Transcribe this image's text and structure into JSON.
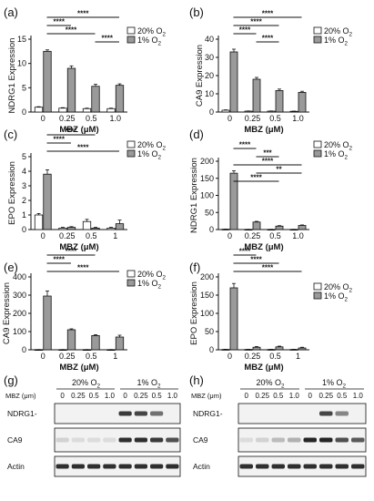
{
  "legend": {
    "normoxia": "20% O",
    "hypoxia": "1% O",
    "sub": "2"
  },
  "colors": {
    "normoxia": "#ffffff",
    "hypoxia": "#9a9a9a",
    "axis": "#111111",
    "band": "#1a1a1a",
    "blot_bg": "#f2f2f2"
  },
  "blot_panels": [
    {
      "label": "(g)",
      "mbz_label": "MBZ (μm)",
      "group_20": "20% O",
      "group_1": "1% O",
      "sub": "2",
      "doses": [
        "0",
        "0.25",
        "0.5",
        "1.0",
        "0",
        "0.25",
        "0.5",
        "1.0"
      ],
      "rows": [
        {
          "name": "NDRG1-",
          "intensities": [
            0,
            0,
            0,
            0,
            0.85,
            0.8,
            0.6,
            0
          ]
        },
        {
          "name": "CA9",
          "intensities": [
            0.15,
            0.1,
            0.1,
            0.1,
            0.9,
            0.9,
            0.85,
            0.75
          ]
        },
        {
          "name": "Actin",
          "intensities": [
            0.9,
            0.9,
            0.9,
            0.9,
            0.9,
            0.9,
            0.9,
            0.9
          ]
        }
      ]
    },
    {
      "label": "(h)",
      "mbz_label": "MBZ (μm)",
      "group_20": "20% O",
      "group_1": "1% O",
      "sub": "2",
      "doses": [
        "0",
        "0.25",
        "0.5",
        "1.0",
        "0",
        "0.25",
        "0.5",
        "1.0"
      ],
      "rows": [
        {
          "name": "NDRG1-",
          "intensities": [
            0,
            0,
            0,
            0,
            0,
            0.8,
            0.5,
            0
          ]
        },
        {
          "name": "CA9",
          "intensities": [
            0.1,
            0.15,
            0.25,
            0.3,
            0.95,
            0.95,
            0.75,
            0.7
          ]
        },
        {
          "name": "Actin",
          "intensities": [
            0.9,
            0.9,
            0.9,
            0.9,
            0.9,
            0.9,
            0.9,
            0.9
          ]
        }
      ]
    }
  ],
  "chart_data": [
    {
      "panel": "(a)",
      "type": "bar",
      "categories": [
        "0",
        "0.25",
        "0.5",
        "1.0"
      ],
      "series": [
        {
          "name": "20% O2",
          "values": [
            1.0,
            0.8,
            0.7,
            0.7
          ],
          "errors": [
            0.1,
            0.1,
            0.1,
            0.1
          ]
        },
        {
          "name": "1% O2",
          "values": [
            12.5,
            9.0,
            5.3,
            5.5
          ],
          "errors": [
            0.3,
            0.5,
            0.4,
            0.3
          ]
        }
      ],
      "xlabel": "MBZ (μM)",
      "ylabel": "NDRG1 Expression",
      "ylim": [
        0,
        15
      ],
      "yticks": [
        "0",
        "5",
        "10",
        "15"
      ],
      "significance": [
        {
          "from": 0,
          "to": 3,
          "label": "****"
        },
        {
          "from": 0,
          "to": 1,
          "label": "****"
        },
        {
          "from": 0,
          "to": 2,
          "label": "****"
        },
        {
          "from": 2,
          "to": 3,
          "label": "****"
        }
      ]
    },
    {
      "panel": "(b)",
      "type": "bar",
      "categories": [
        "0",
        "0.25",
        "0.5",
        "1.0"
      ],
      "series": [
        {
          "name": "20% O2",
          "values": [
            1.0,
            0.5,
            0.5,
            0.4
          ],
          "errors": [
            0.2,
            0.1,
            0.1,
            0.1
          ]
        },
        {
          "name": "1% O2",
          "values": [
            33,
            18,
            11.8,
            10.8
          ],
          "errors": [
            1.5,
            1.0,
            0.8,
            0.6
          ]
        }
      ],
      "xlabel": "MBZ (μM)",
      "ylabel": "CA9 Expression",
      "ylim": [
        0,
        40
      ],
      "yticks": [
        "0",
        "10",
        "20",
        "30",
        "40"
      ],
      "significance": [
        {
          "from": 0,
          "to": 3,
          "label": "****"
        },
        {
          "from": 0,
          "to": 2,
          "label": "****"
        },
        {
          "from": 0,
          "to": 1,
          "label": "****"
        },
        {
          "from": 1,
          "to": 2,
          "label": "****"
        }
      ]
    },
    {
      "panel": "(c)",
      "type": "bar",
      "categories": [
        "0",
        "0.25",
        "0.5",
        "1"
      ],
      "series": [
        {
          "name": "20% O2",
          "values": [
            1.0,
            0.1,
            0.55,
            0.1
          ],
          "errors": [
            0.1,
            0.05,
            0.15,
            0.05
          ]
        },
        {
          "name": "1% O2",
          "values": [
            3.8,
            0.15,
            0.1,
            0.4
          ],
          "errors": [
            0.3,
            0.05,
            0.05,
            0.25
          ]
        }
      ],
      "xlabel": "MBZ (μM)",
      "ylabel": "EPO Expression",
      "ylim": [
        0,
        5
      ],
      "yticks": [
        "0",
        "1",
        "2",
        "3",
        "4",
        "5"
      ],
      "significance": [
        {
          "from": 0,
          "to": 2,
          "label": "****"
        },
        {
          "from": 0,
          "to": 1,
          "label": "****"
        },
        {
          "from": 0,
          "to": 3,
          "label": "****"
        }
      ]
    },
    {
      "panel": "(d)",
      "type": "bar",
      "categories": [
        "0",
        "0.25",
        "0.5",
        "1.0"
      ],
      "series": [
        {
          "name": "20% O2",
          "values": [
            1,
            0.5,
            0.5,
            0.5
          ],
          "errors": [
            0.2,
            0.1,
            0.1,
            0.1
          ]
        },
        {
          "name": "1% O2",
          "values": [
            165,
            22,
            10,
            12
          ],
          "errors": [
            7,
            2,
            1.5,
            1.5
          ]
        }
      ],
      "xlabel": "MBZ (μM)",
      "ylabel": "NDRG1 Expression",
      "ylim": [
        0,
        200
      ],
      "yticks": [
        "0",
        "50",
        "100",
        "150",
        "200"
      ],
      "significance": [
        {
          "from": 0,
          "to": 1,
          "label": "****"
        },
        {
          "from": 1,
          "to": 2,
          "label": "***"
        },
        {
          "from": 0,
          "to": 3,
          "label": "****"
        },
        {
          "from": 1,
          "to": 3,
          "label": "**"
        },
        {
          "from": 0,
          "to": 2,
          "label": "****"
        }
      ]
    },
    {
      "panel": "(e)",
      "type": "bar",
      "categories": [
        "0",
        "0.25",
        "0.5",
        "1"
      ],
      "series": [
        {
          "name": "20% O2",
          "values": [
            1,
            1,
            1,
            1
          ],
          "errors": [
            0.2,
            0.2,
            0.2,
            0.2
          ]
        },
        {
          "name": "1% O2",
          "values": [
            295,
            110,
            78,
            70
          ],
          "errors": [
            28,
            5,
            5,
            10
          ]
        }
      ],
      "xlabel": "MBZ (μM)",
      "ylabel": "CA9 Expression",
      "ylim": [
        0,
        400
      ],
      "yticks": [
        "0",
        "100",
        "200",
        "300",
        "400"
      ],
      "significance": [
        {
          "from": 0,
          "to": 2,
          "label": "****"
        },
        {
          "from": 0,
          "to": 1,
          "label": "****"
        },
        {
          "from": 0,
          "to": 3,
          "label": "****"
        }
      ]
    },
    {
      "panel": "(f)",
      "type": "bar",
      "categories": [
        "0",
        "0.25",
        "0.5",
        "1"
      ],
      "series": [
        {
          "name": "20% O2",
          "values": [
            1,
            1,
            1,
            1
          ],
          "errors": [
            0.3,
            0.3,
            0.3,
            0.3
          ]
        },
        {
          "name": "1% O2",
          "values": [
            170,
            7,
            8,
            5
          ],
          "errors": [
            12,
            2,
            2,
            2
          ]
        }
      ],
      "xlabel": "MBZ (μM)",
      "ylabel": "EPO Expression",
      "ylim": [
        0,
        200
      ],
      "yticks": [
        "0",
        "50",
        "100",
        "150",
        "200"
      ],
      "significance": [
        {
          "from": 0,
          "to": 1,
          "label": "****"
        },
        {
          "from": 0,
          "to": 2,
          "label": "****"
        },
        {
          "from": 0,
          "to": 3,
          "label": "****"
        }
      ]
    }
  ]
}
